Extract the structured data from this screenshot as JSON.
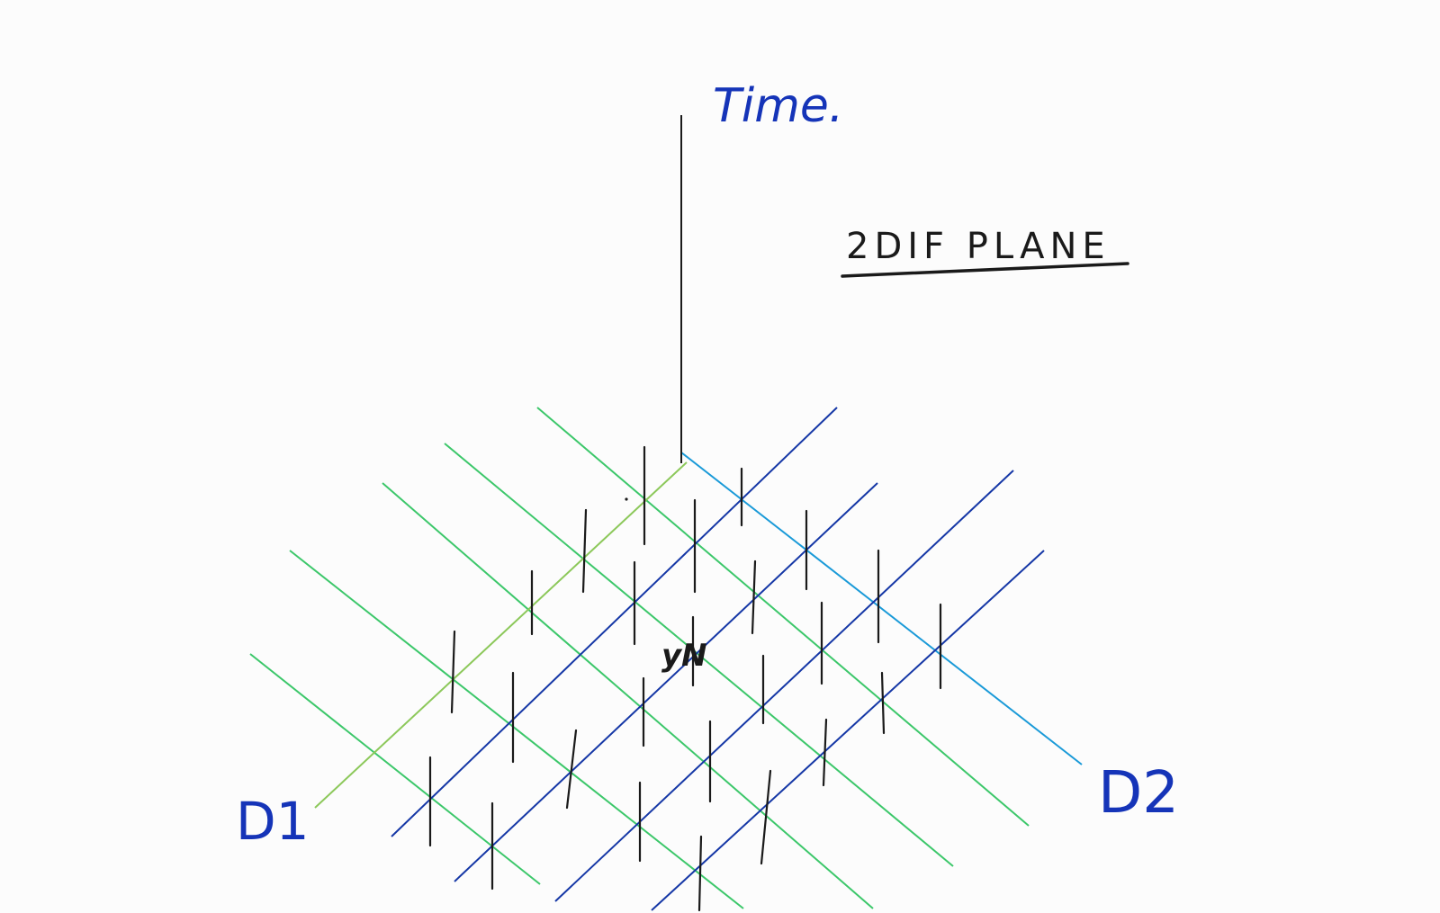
{
  "labels": {
    "time_axis": "Time.",
    "title": "2DIF PLANE",
    "d1_axis": "D1",
    "d2_axis": "D2",
    "point_label": "yN"
  },
  "colors": {
    "background": "#fcfcfc",
    "green_lines": "#3cc76a",
    "light_green_line": "#8cc85a",
    "blue_lines": "#1537a6",
    "light_blue_line": "#1a9ad8",
    "ink": "#1a1a1a",
    "label_blue": "#1534b8"
  }
}
